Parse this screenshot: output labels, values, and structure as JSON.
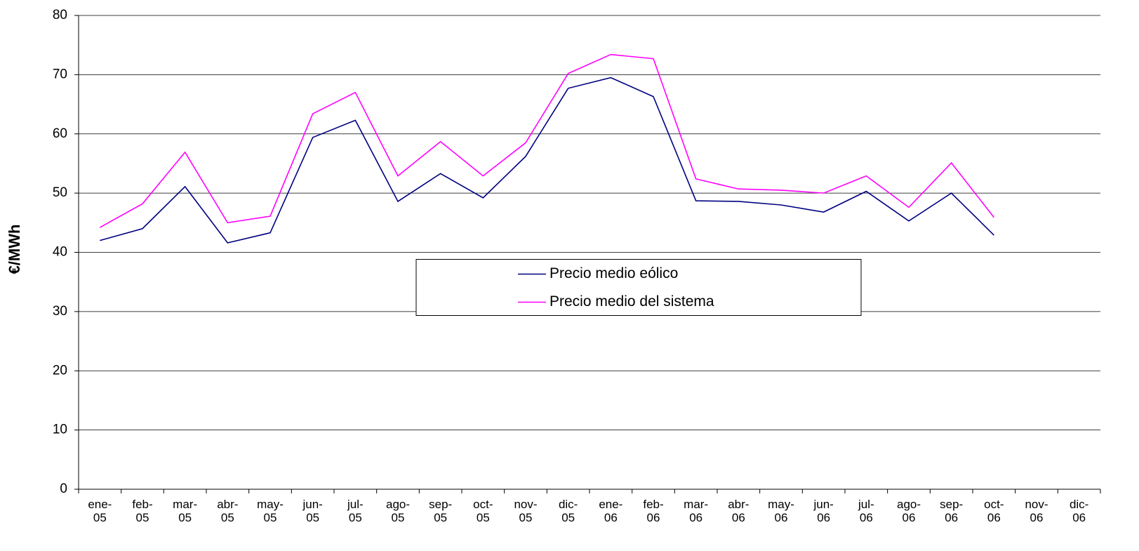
{
  "chart_data": {
    "type": "line",
    "y_label": "€/MWh",
    "categories": [
      "ene-05",
      "feb-05",
      "mar-05",
      "abr-05",
      "may-05",
      "jun-05",
      "jul-05",
      "ago-05",
      "sep-05",
      "oct-05",
      "nov-05",
      "dic-05",
      "ene-06",
      "feb-06",
      "mar-06",
      "abr-06",
      "may-06",
      "jun-06",
      "jul-06",
      "ago-06",
      "sep-06",
      "oct-06",
      "nov-06",
      "dic-06"
    ],
    "series": [
      {
        "name": "Precio medio eólico",
        "color": "#000080",
        "values": [
          42.0,
          44.0,
          51.1,
          41.6,
          43.3,
          59.4,
          62.3,
          48.6,
          53.3,
          49.2,
          56.2,
          67.7,
          69.5,
          66.3,
          48.7,
          48.6,
          48.0,
          46.8,
          50.3,
          45.3,
          50.0,
          42.9,
          null,
          null
        ]
      },
      {
        "name": "Precio medio del sistema",
        "color": "#ff00ff",
        "values": [
          44.2,
          48.2,
          56.9,
          45.0,
          46.1,
          63.4,
          67.0,
          52.9,
          58.7,
          52.9,
          58.5,
          70.2,
          73.4,
          72.7,
          52.4,
          50.7,
          50.5,
          50.0,
          52.9,
          47.6,
          55.1,
          45.9,
          null,
          null
        ]
      }
    ],
    "ylim": [
      0,
      80
    ],
    "yticks": [
      0,
      10,
      20,
      30,
      40,
      50,
      60,
      70,
      80
    ],
    "grid": true,
    "legend": "center"
  }
}
